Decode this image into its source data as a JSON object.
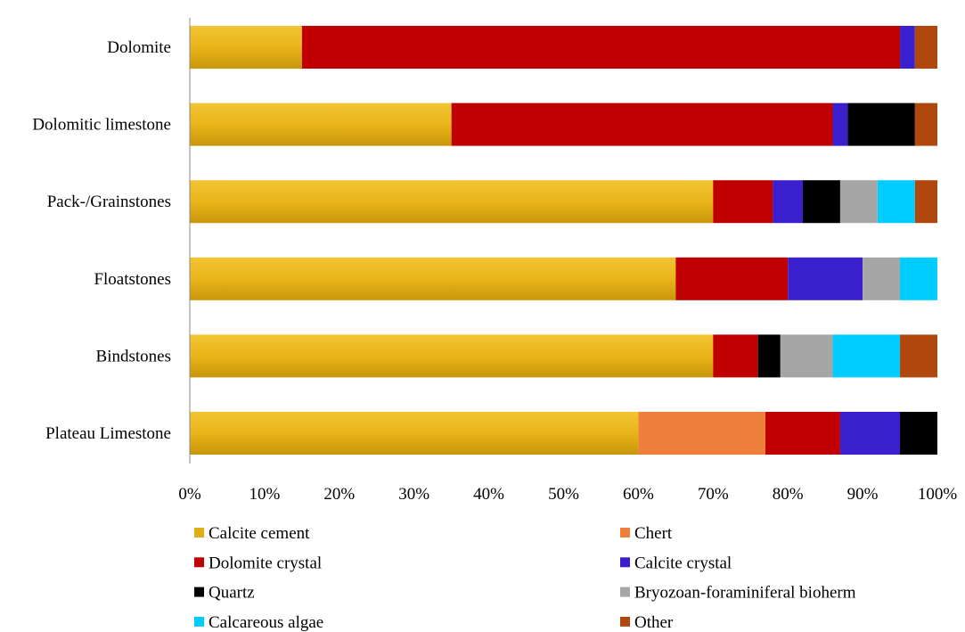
{
  "chart_data": {
    "type": "bar",
    "orientation": "horizontal",
    "stacked": "percent",
    "title": "",
    "xlabel": "",
    "ylabel": "",
    "xlim": [
      0,
      100
    ],
    "xticks": [
      "0%",
      "10%",
      "20%",
      "30%",
      "40%",
      "50%",
      "60%",
      "70%",
      "80%",
      "90%",
      "100%"
    ],
    "grid": false,
    "legend_position": "bottom",
    "categories": [
      "Dolomite",
      "Dolomitic limestone",
      "Pack-/Grainstones",
      "Floatstones",
      "Bindstones",
      "Plateau Limestone"
    ],
    "series": [
      {
        "name": "Calcite cement",
        "color": "#E0AE12",
        "values": [
          15,
          35,
          70,
          65,
          70,
          60
        ]
      },
      {
        "name": "Chert",
        "color": "#F07F3C",
        "values": [
          0,
          0,
          0,
          0,
          0,
          17
        ]
      },
      {
        "name": "Dolomite crystal",
        "color": "#C00000",
        "values": [
          80,
          51,
          8,
          15,
          6,
          10
        ]
      },
      {
        "name": "Calcite crystal",
        "color": "#3A1FCF",
        "values": [
          2,
          2,
          4,
          10,
          0,
          8
        ]
      },
      {
        "name": "Quartz",
        "color": "#000000",
        "values": [
          0,
          9,
          5,
          0,
          3,
          5
        ]
      },
      {
        "name": "Bryozoan-foraminiferal bioherm",
        "color": "#A6A6A6",
        "values": [
          0,
          0,
          5,
          5,
          7,
          0
        ]
      },
      {
        "name": "Calcareous algae",
        "color": "#00CCFF",
        "values": [
          0,
          0,
          5,
          5,
          9,
          0
        ]
      },
      {
        "name": "Other",
        "color": "#B0480E",
        "values": [
          3,
          3,
          3,
          0,
          5,
          0
        ]
      }
    ]
  }
}
